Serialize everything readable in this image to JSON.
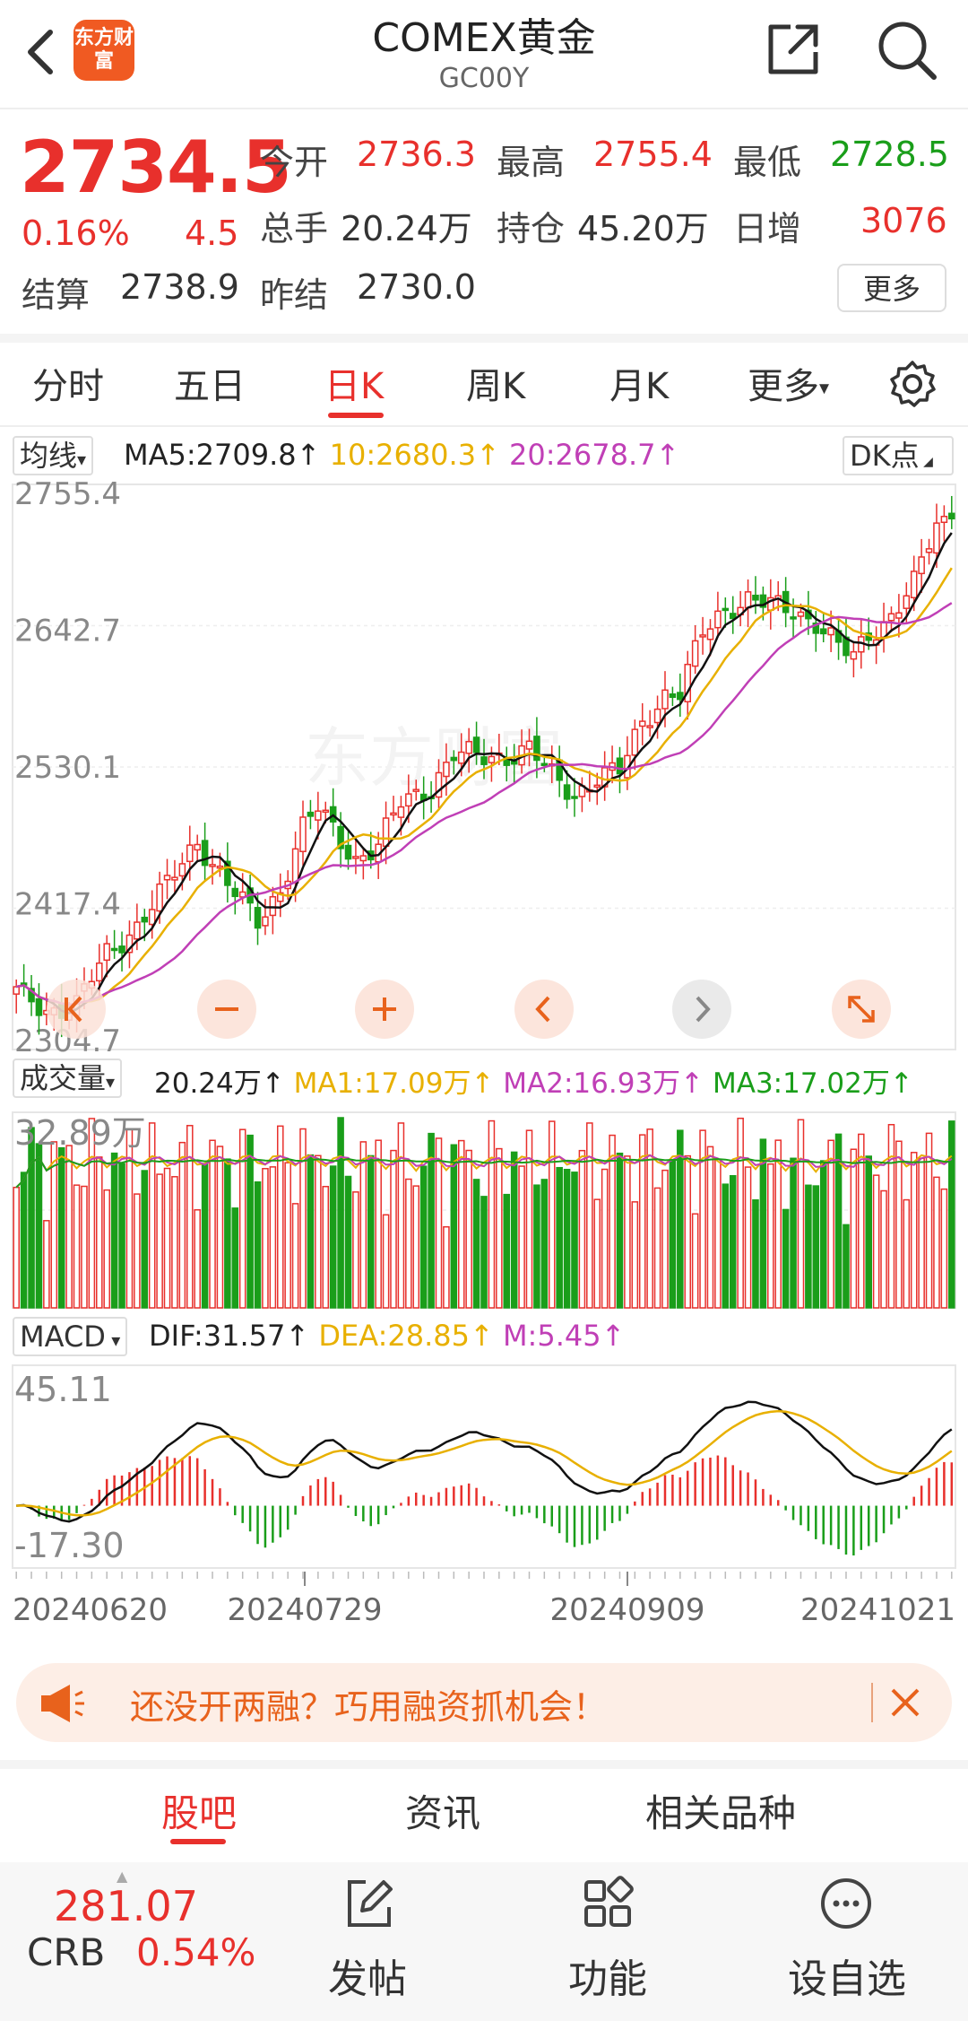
{
  "header": {
    "title": "COMEX黄金",
    "code": "GC00Y",
    "logo_text": "东方财富"
  },
  "quote": {
    "price": "2734.5",
    "change_pct": "0.16%",
    "change": "4.5",
    "fields": [
      {
        "label": "今开",
        "value": "2736.3",
        "color": "red"
      },
      {
        "label": "最高",
        "value": "2755.4",
        "color": "red"
      },
      {
        "label": "最低",
        "value": "2728.5",
        "color": "green"
      },
      {
        "label": "总手",
        "value": "20.24万",
        "color": "dark"
      },
      {
        "label": "持仓",
        "value": "45.20万",
        "color": "dark"
      },
      {
        "label": "日增",
        "value": "3076",
        "color": "red"
      },
      {
        "label": "结算",
        "value": "2738.9",
        "color": "dark"
      },
      {
        "label": "昨结",
        "value": "2730.0",
        "color": "dark"
      }
    ],
    "more_label": "更多"
  },
  "tabs": [
    "分时",
    "五日",
    "日K",
    "周K",
    "月K",
    "更多"
  ],
  "active_tab": "日K",
  "indicators": {
    "ma_select": "均线",
    "ma5": "MA5:2709.8↑",
    "ma10": "10:2680.3↑",
    "ma20": "20:2678.7↑",
    "dk_label": "DK点",
    "vol_select": "成交量",
    "vol_val": "20.24万↑",
    "vol_ma1": "MA1:17.09万↑",
    "vol_ma2": "MA2:16.93万↑",
    "vol_ma3": "MA3:17.02万↑",
    "macd_select": "MACD",
    "dif": "DIF:31.57↑",
    "dea": "DEA:28.85↑",
    "m": "M:5.45↑"
  },
  "chart_data": {
    "type": "candlestick",
    "price_ticks": [
      "2755.4",
      "2642.7",
      "2530.1",
      "2417.4",
      "2304.7"
    ],
    "ylim": [
      2304.7,
      2755.4
    ],
    "volume_max_label": "32.89万",
    "macd_ticks": [
      "45.11",
      "-17.30"
    ],
    "macd_range": [
      -17.3,
      45.11
    ],
    "date_labels": [
      "20240620",
      "20240729",
      "20240909",
      "20241021"
    ],
    "colors": {
      "up": "#e8302c",
      "down": "#1a9e1a",
      "ma5": "#111111",
      "ma10": "#e8b000",
      "ma20": "#c03fb6"
    },
    "anchors": [
      [
        0,
        2344
      ],
      [
        4,
        2330
      ],
      [
        8,
        2334
      ],
      [
        12,
        2376
      ],
      [
        16,
        2400
      ],
      [
        20,
        2432
      ],
      [
        24,
        2470
      ],
      [
        26,
        2452
      ],
      [
        29,
        2425
      ],
      [
        32,
        2402
      ],
      [
        35,
        2430
      ],
      [
        38,
        2480
      ],
      [
        40,
        2495
      ],
      [
        43,
        2470
      ],
      [
        45,
        2455
      ],
      [
        48,
        2465
      ],
      [
        51,
        2500
      ],
      [
        55,
        2515
      ],
      [
        58,
        2540
      ],
      [
        62,
        2538
      ],
      [
        65,
        2540
      ],
      [
        68,
        2545
      ],
      [
        71,
        2522
      ],
      [
        74,
        2508
      ],
      [
        77,
        2522
      ],
      [
        80,
        2525
      ],
      [
        83,
        2568
      ],
      [
        86,
        2590
      ],
      [
        88,
        2590
      ],
      [
        91,
        2640
      ],
      [
        94,
        2662
      ],
      [
        97,
        2668
      ],
      [
        100,
        2662
      ],
      [
        103,
        2660
      ],
      [
        106,
        2650
      ],
      [
        109,
        2628
      ],
      [
        111,
        2620
      ],
      [
        113,
        2640
      ],
      [
        116,
        2655
      ],
      [
        119,
        2680
      ],
      [
        122,
        2730
      ],
      [
        124,
        2734
      ]
    ]
  },
  "chart_controls": [
    "back-scroll",
    "zoom-out",
    "zoom-in",
    "prev",
    "next",
    "fullscreen"
  ],
  "ad": {
    "text": "还没开两融？巧用融资抓机会！"
  },
  "bottom_tabs": [
    "股吧",
    "资讯",
    "相关品种"
  ],
  "footer": {
    "index_value": "281.07",
    "index_name": "CRB",
    "index_pct": "0.54%",
    "buttons": [
      {
        "icon": "edit-icon",
        "label": "发帖"
      },
      {
        "icon": "grid-icon",
        "label": "功能"
      },
      {
        "icon": "more-circle-icon",
        "label": "设自选"
      }
    ]
  }
}
